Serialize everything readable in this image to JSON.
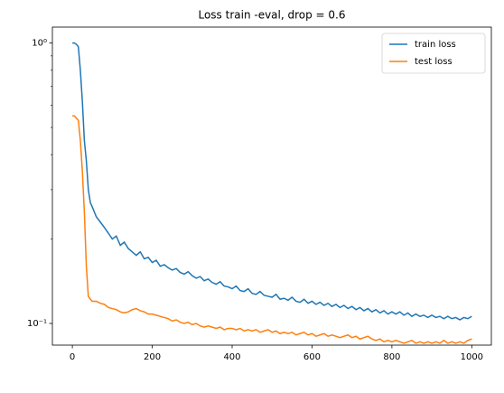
{
  "chart_data": {
    "type": "line",
    "title": "Loss train -eval, drop = 0.6",
    "x": [
      0,
      5,
      10,
      15,
      20,
      25,
      30,
      35,
      40,
      45,
      50,
      60,
      70,
      80,
      90,
      100,
      110,
      120,
      130,
      140,
      150,
      160,
      170,
      180,
      190,
      200,
      210,
      220,
      230,
      240,
      250,
      260,
      270,
      280,
      290,
      300,
      310,
      320,
      330,
      340,
      350,
      360,
      370,
      380,
      390,
      400,
      410,
      420,
      430,
      440,
      450,
      460,
      470,
      480,
      490,
      500,
      510,
      520,
      530,
      540,
      550,
      560,
      570,
      580,
      590,
      600,
      610,
      620,
      630,
      640,
      650,
      660,
      670,
      680,
      690,
      700,
      710,
      720,
      730,
      740,
      750,
      760,
      770,
      780,
      790,
      800,
      810,
      820,
      830,
      840,
      850,
      860,
      870,
      880,
      890,
      900,
      910,
      920,
      930,
      940,
      950,
      960,
      970,
      980,
      990,
      1000
    ],
    "series": [
      {
        "name": "train loss",
        "color": "#1f77b4",
        "values": [
          1.0,
          1.0,
          0.99,
          0.97,
          0.8,
          0.62,
          0.45,
          0.38,
          0.3,
          0.27,
          0.26,
          0.24,
          0.23,
          0.22,
          0.21,
          0.2,
          0.205,
          0.19,
          0.195,
          0.185,
          0.18,
          0.175,
          0.18,
          0.17,
          0.172,
          0.165,
          0.168,
          0.16,
          0.162,
          0.158,
          0.155,
          0.157,
          0.152,
          0.15,
          0.153,
          0.148,
          0.145,
          0.147,
          0.142,
          0.144,
          0.14,
          0.138,
          0.141,
          0.136,
          0.135,
          0.133,
          0.136,
          0.131,
          0.13,
          0.133,
          0.128,
          0.127,
          0.13,
          0.126,
          0.125,
          0.124,
          0.127,
          0.122,
          0.123,
          0.121,
          0.124,
          0.12,
          0.119,
          0.122,
          0.118,
          0.12,
          0.117,
          0.119,
          0.116,
          0.118,
          0.115,
          0.117,
          0.114,
          0.116,
          0.113,
          0.115,
          0.112,
          0.114,
          0.111,
          0.113,
          0.11,
          0.112,
          0.109,
          0.111,
          0.108,
          0.11,
          0.108,
          0.11,
          0.107,
          0.109,
          0.106,
          0.108,
          0.106,
          0.107,
          0.105,
          0.107,
          0.105,
          0.106,
          0.104,
          0.106,
          0.104,
          0.105,
          0.103,
          0.105,
          0.104,
          0.106
        ]
      },
      {
        "name": "test loss",
        "color": "#ff7f0e",
        "values": [
          0.55,
          0.55,
          0.54,
          0.53,
          0.45,
          0.35,
          0.25,
          0.16,
          0.125,
          0.122,
          0.12,
          0.12,
          0.118,
          0.117,
          0.114,
          0.113,
          0.112,
          0.11,
          0.109,
          0.11,
          0.112,
          0.113,
          0.111,
          0.11,
          0.108,
          0.108,
          0.107,
          0.106,
          0.105,
          0.104,
          0.102,
          0.103,
          0.101,
          0.1,
          0.101,
          0.099,
          0.1,
          0.098,
          0.097,
          0.098,
          0.097,
          0.096,
          0.097,
          0.095,
          0.096,
          0.096,
          0.095,
          0.096,
          0.094,
          0.095,
          0.094,
          0.095,
          0.093,
          0.094,
          0.095,
          0.093,
          0.094,
          0.092,
          0.093,
          0.092,
          0.093,
          0.091,
          0.092,
          0.093,
          0.091,
          0.092,
          0.09,
          0.091,
          0.092,
          0.09,
          0.091,
          0.09,
          0.089,
          0.09,
          0.091,
          0.089,
          0.09,
          0.088,
          0.089,
          0.09,
          0.088,
          0.087,
          0.088,
          0.086,
          0.087,
          0.086,
          0.087,
          0.086,
          0.085,
          0.086,
          0.087,
          0.085,
          0.086,
          0.085,
          0.086,
          0.085,
          0.086,
          0.085,
          0.087,
          0.085,
          0.086,
          0.085,
          0.086,
          0.085,
          0.087,
          0.088
        ]
      }
    ],
    "xlim": [
      -50,
      1049
    ],
    "xticks": [
      0,
      200,
      400,
      600,
      800,
      1000
    ],
    "ylim": [
      0.0837,
      1.14
    ],
    "ylog": true,
    "yticks": [
      {
        "value": 1,
        "label": "10⁰"
      },
      {
        "value": 0.1,
        "label": "10⁻¹"
      }
    ],
    "yminorticks": [
      0.2,
      0.3,
      0.4,
      0.5,
      0.6,
      0.7,
      0.8,
      0.9
    ],
    "legend": "upper right"
  }
}
